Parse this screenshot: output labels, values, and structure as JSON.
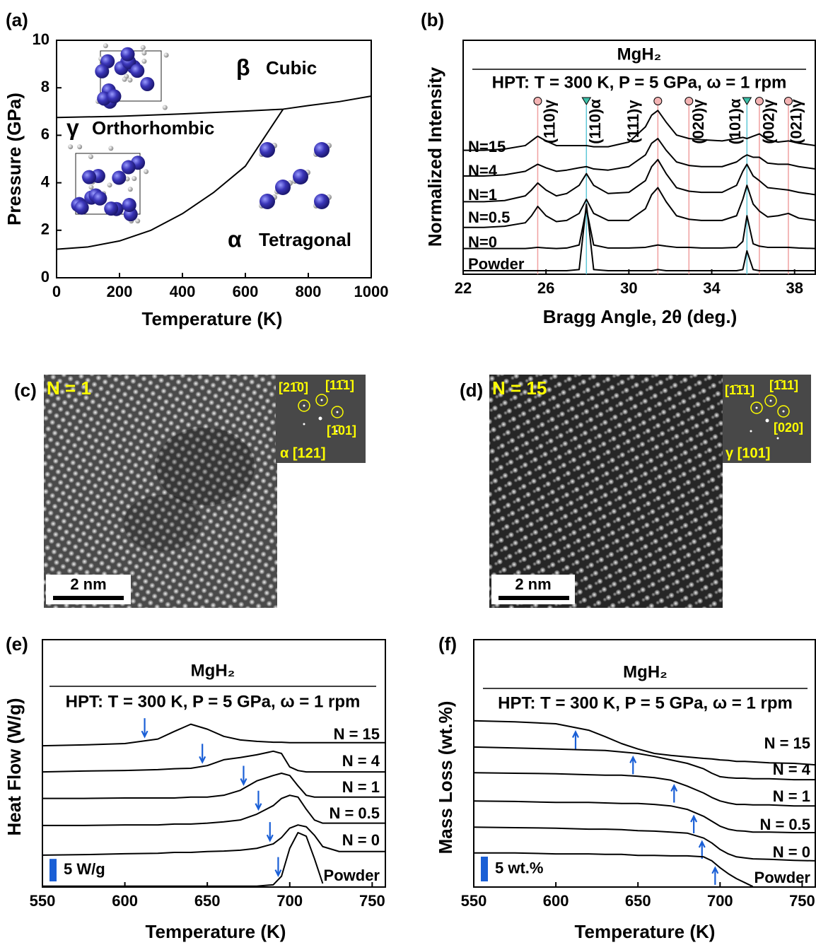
{
  "chart_data": [
    {
      "panel": "(a)",
      "type": "line",
      "xlabel": "Temperature (K)",
      "ylabel": "Pressure (GPa)",
      "xlim": [
        0,
        1000
      ],
      "ylim": [
        0,
        10
      ],
      "xticks": [
        0,
        200,
        400,
        600,
        800,
        1000
      ],
      "yticks": [
        0,
        2,
        4,
        6,
        8,
        10
      ],
      "series": [
        {
          "x": [
            0,
            200,
            400,
            600,
            720,
            800,
            900,
            1000
          ],
          "values": [
            6.75,
            6.8,
            6.9,
            7.02,
            7.1,
            7.25,
            7.42,
            7.65
          ],
          "color": "#000000"
        },
        {
          "x": [
            0,
            100,
            200,
            300,
            400,
            500,
            600,
            720
          ],
          "values": [
            1.2,
            1.3,
            1.55,
            2.0,
            2.7,
            3.6,
            4.7,
            7.1
          ],
          "color": "#000000"
        }
      ],
      "annotations": [
        {
          "symbol": "β",
          "text": "Cubic",
          "color": "#2e9a2e"
        },
        {
          "symbol": "γ",
          "text": "Orthorhombic",
          "color": "#dd1a1a"
        },
        {
          "symbol": "α",
          "text": "Tetragonal",
          "color": "#1f2fd0"
        }
      ]
    },
    {
      "panel": "(b)",
      "type": "line",
      "title": "MgH₂",
      "subtitle": "HPT: T = 300 K, P = 5 GPa, ω = 1 rpm",
      "xlabel": "Bragg Angle, 2θ (deg.)",
      "ylabel": "Normalized Intensity",
      "xlim": [
        22,
        39
      ],
      "ylim": [
        0,
        10
      ],
      "xticks": [
        22,
        26,
        30,
        34,
        38
      ],
      "x": [
        22,
        23,
        24,
        25,
        25.3,
        25.6,
        26,
        26.5,
        27,
        27.6,
        27.95,
        28.3,
        29,
        30,
        30.8,
        31.1,
        31.4,
        31.8,
        32.3,
        32.9,
        33.5,
        34.5,
        35.2,
        35.5,
        35.7,
        36,
        36.3,
        36.7,
        37.2,
        37.7,
        38.2,
        39
      ],
      "series": [
        {
          "name": "N=15",
          "color": "#000000",
          "values": [
            5.3,
            5.3,
            5.35,
            5.5,
            5.7,
            5.9,
            5.7,
            5.5,
            5.5,
            5.5,
            5.5,
            5.45,
            5.45,
            5.65,
            6.3,
            6.8,
            7.0,
            6.5,
            5.95,
            5.8,
            5.75,
            5.7,
            5.8,
            5.85,
            5.8,
            5.9,
            6.0,
            5.75,
            5.65,
            5.7,
            5.6,
            5.5
          ]
        },
        {
          "name": "N=4",
          "color": "#000000",
          "values": [
            4.2,
            4.2,
            4.25,
            4.4,
            4.55,
            4.7,
            4.55,
            4.4,
            4.45,
            4.55,
            4.6,
            4.5,
            4.45,
            4.6,
            5.1,
            5.6,
            5.8,
            5.3,
            4.8,
            4.65,
            4.6,
            4.6,
            4.8,
            5.0,
            5.1,
            5.0,
            5.0,
            4.75,
            4.7,
            4.7,
            4.6,
            4.5
          ]
        },
        {
          "name": "N=1",
          "color": "#000000",
          "values": [
            3.1,
            3.1,
            3.15,
            3.35,
            3.6,
            3.9,
            3.6,
            3.35,
            3.45,
            3.8,
            4.3,
            3.8,
            3.45,
            3.5,
            4.0,
            4.6,
            4.9,
            4.3,
            3.7,
            3.55,
            3.5,
            3.5,
            3.8,
            4.4,
            4.7,
            4.2,
            4.0,
            3.7,
            3.65,
            3.6,
            3.5,
            3.4
          ]
        },
        {
          "name": "N=0.5",
          "color": "#000000",
          "values": [
            2.0,
            2.0,
            2.05,
            2.2,
            2.5,
            2.9,
            2.5,
            2.25,
            2.3,
            2.6,
            3.2,
            2.6,
            2.3,
            2.3,
            2.8,
            3.4,
            3.7,
            3.1,
            2.5,
            2.35,
            2.3,
            2.3,
            2.5,
            3.2,
            3.8,
            3.0,
            2.7,
            2.45,
            2.5,
            2.6,
            2.4,
            2.3
          ]
        },
        {
          "name": "N=0",
          "color": "#000000",
          "values": [
            1.1,
            1.1,
            1.1,
            1.1,
            1.12,
            1.15,
            1.12,
            1.1,
            1.12,
            1.25,
            2.8,
            1.25,
            1.12,
            1.12,
            1.15,
            1.2,
            1.25,
            1.2,
            1.15,
            1.15,
            1.12,
            1.12,
            1.15,
            1.4,
            2.5,
            1.3,
            1.2,
            1.15,
            1.15,
            1.15,
            1.12,
            1.1
          ]
        },
        {
          "name": "Powder",
          "color": "#000000",
          "values": [
            0.15,
            0.15,
            0.15,
            0.15,
            0.15,
            0.15,
            0.15,
            0.15,
            0.15,
            0.2,
            3.0,
            0.2,
            0.15,
            0.15,
            0.15,
            0.15,
            0.2,
            0.15,
            0.15,
            0.15,
            0.15,
            0.15,
            0.15,
            0.2,
            1.0,
            0.2,
            0.15,
            0.15,
            0.15,
            0.15,
            0.15,
            0.15
          ]
        }
      ],
      "peaks": [
        {
          "label": "(110)γ",
          "x": 25.6,
          "marker": "circle",
          "color": "#cc1111"
        },
        {
          "label": "(110)α",
          "x": 27.95,
          "marker": "triangle",
          "color": "#1a55cc"
        },
        {
          "label": "(111)γ",
          "x": 31.4,
          "marker": "circle",
          "color": "#cc1111"
        },
        {
          "label": "(020)γ",
          "x": 32.9,
          "marker": "circle",
          "color": "#cc1111"
        },
        {
          "label": "(101)α",
          "x": 35.7,
          "marker": "triangle",
          "color": "#1a55cc"
        },
        {
          "label": "(002)γ",
          "x": 36.3,
          "marker": "circle",
          "color": "#cc1111"
        },
        {
          "label": "(021)γ",
          "x": 37.7,
          "marker": "circle",
          "color": "#cc1111"
        }
      ]
    },
    {
      "panel": "(e)",
      "type": "line",
      "title": "MgH₂",
      "subtitle": "HPT: T = 300 K, P = 5 GPa, ω = 1 rpm",
      "xlabel": "Temperature (K)",
      "ylabel": "Heat Flow (W/g)",
      "xlim": [
        550,
        758
      ],
      "ylim": [
        0,
        55
      ],
      "xticks": [
        550,
        600,
        650,
        700,
        750
      ],
      "x": [
        550,
        575,
        600,
        620,
        630,
        640,
        650,
        660,
        670,
        680,
        690,
        695,
        700,
        705,
        710,
        715,
        720,
        730,
        745,
        758
      ],
      "series": [
        {
          "name": "N = 15",
          "color": "#000000",
          "onset": 612,
          "values": [
            31.4,
            31.6,
            31.9,
            32.9,
            34.6,
            36.2,
            35.1,
            33.5,
            32.7,
            32.4,
            32.2,
            32.2,
            32.1,
            32.1,
            32.1,
            32.1,
            32.1,
            32.1,
            32.1,
            32.1
          ]
        },
        {
          "name": "N = 4",
          "color": "#000000",
          "onset": 647,
          "values": [
            25.6,
            25.8,
            25.9,
            26.1,
            26.3,
            26.4,
            27.0,
            28.3,
            28.8,
            29.4,
            30.2,
            29.7,
            26.7,
            25.9,
            25.6,
            25.6,
            25.6,
            25.6,
            25.6,
            25.6
          ]
        },
        {
          "name": "N = 1",
          "color": "#000000",
          "onset": 672,
          "values": [
            19.7,
            19.7,
            19.8,
            19.8,
            19.8,
            20.0,
            20.0,
            20.4,
            21.5,
            23.6,
            24.8,
            25.3,
            24.8,
            22.5,
            20.4,
            20.0,
            20.0,
            20.0,
            20.0,
            20.0
          ]
        },
        {
          "name": "N = 0.5",
          "color": "#000000",
          "onset": 681,
          "values": [
            13.7,
            13.7,
            13.8,
            13.8,
            14.0,
            14.0,
            14.2,
            14.5,
            14.9,
            16.2,
            18.1,
            19.7,
            20.4,
            20.0,
            17.3,
            14.9,
            14.2,
            14.2,
            14.2,
            14.2
          ]
        },
        {
          "name": "N = 0",
          "color": "#000000",
          "onset": 688,
          "values": [
            7.1,
            7.2,
            7.4,
            7.5,
            7.7,
            7.7,
            7.9,
            8.0,
            8.2,
            8.6,
            9.6,
            11.0,
            13.1,
            13.8,
            13.4,
            11.5,
            9.0,
            7.9,
            7.9,
            7.9
          ]
        },
        {
          "name": "Powder",
          "color": "#000000",
          "onset": 693,
          "values": [
            0.2,
            0.2,
            0.2,
            0.2,
            0.2,
            0.2,
            0.2,
            0.2,
            0.2,
            0.2,
            0.5,
            2.4,
            8.6,
            12.1,
            11.3,
            6.3,
            0.8,
            null,
            null,
            null
          ]
        }
      ],
      "arrow_color": "#1a5fd6",
      "arrow_direction": "down",
      "scale_bar": {
        "value": 5,
        "label": "5 W/g",
        "color": "#1a5fd6"
      }
    },
    {
      "panel": "(f)",
      "type": "line",
      "title": "MgH₂",
      "subtitle": "HPT: T = 300 K, P = 5 GPa, ω = 1 rpm",
      "xlabel": "Temperature (K)",
      "ylabel": "Mass Loss (wt.%)",
      "xlim": [
        550,
        758
      ],
      "ylim": [
        0,
        50
      ],
      "xticks": [
        550,
        600,
        650,
        700,
        750
      ],
      "x": [
        550,
        575,
        600,
        620,
        630,
        640,
        650,
        660,
        670,
        680,
        690,
        695,
        700,
        705,
        710,
        715,
        720,
        730,
        745,
        758
      ],
      "series": [
        {
          "name": "N = 15",
          "color": "#000000",
          "onset": 612,
          "values": [
            33.6,
            33.4,
            33.0,
            31.7,
            30.4,
            29.0,
            27.9,
            27.0,
            26.6,
            26.3,
            26.0,
            25.9,
            25.7,
            25.6,
            25.4,
            25.4,
            25.3,
            25.1,
            25.0,
            24.7
          ]
        },
        {
          "name": "N = 4",
          "color": "#000000",
          "onset": 647,
          "values": [
            28.3,
            28.1,
            27.9,
            27.7,
            27.6,
            27.3,
            27.0,
            26.4,
            25.7,
            25.0,
            23.9,
            23.0,
            22.3,
            22.1,
            22.0,
            22.0,
            21.9,
            21.9,
            21.7,
            21.7
          ]
        },
        {
          "name": "N = 1",
          "color": "#000000",
          "onset": 672,
          "values": [
            23.1,
            23.0,
            22.9,
            22.7,
            22.6,
            22.6,
            22.4,
            22.1,
            21.6,
            20.4,
            19.0,
            18.1,
            17.4,
            17.0,
            16.7,
            16.7,
            16.6,
            16.6,
            16.4,
            16.4
          ]
        },
        {
          "name": "N = 0.5",
          "color": "#000000",
          "onset": 684,
          "values": [
            17.4,
            17.3,
            17.1,
            17.1,
            17.0,
            16.9,
            16.9,
            16.7,
            16.4,
            15.7,
            14.3,
            13.3,
            12.3,
            11.7,
            11.4,
            11.3,
            11.1,
            11.1,
            11.0,
            11.0
          ]
        },
        {
          "name": "N = 0",
          "color": "#000000",
          "onset": 689,
          "values": [
            12.1,
            12.0,
            11.9,
            11.7,
            11.7,
            11.6,
            11.4,
            11.3,
            11.1,
            10.9,
            9.9,
            8.9,
            7.6,
            6.7,
            6.1,
            5.9,
            5.7,
            5.6,
            5.4,
            5.3
          ]
        },
        {
          "name": "Powder",
          "color": "#000000",
          "onset": 697,
          "values": [
            6.9,
            6.9,
            6.7,
            6.7,
            6.6,
            6.6,
            6.4,
            6.4,
            6.3,
            6.3,
            6.1,
            5.3,
            3.9,
            2.7,
            1.7,
            0.9,
            0.1,
            null,
            null,
            null
          ]
        }
      ],
      "arrow_color": "#1a5fd6",
      "arrow_direction": "up",
      "scale_bar": {
        "value": 5,
        "label": "5 wt.%",
        "color": "#1a5fd6"
      }
    }
  ],
  "micrographs": [
    {
      "panel": "(c)",
      "title": "N = 1",
      "inset_labels": [
        "[21̄0]",
        "[11̄1]",
        "[1̄01]"
      ],
      "zone": "α [121]",
      "scale_bar": "2 nm"
    },
    {
      "panel": "(d)",
      "title": "N = 15",
      "inset_labels": [
        "[1̄1̄1]",
        "[1̄11]",
        "[020]"
      ],
      "zone": "γ [101]",
      "scale_bar": "2 nm"
    }
  ]
}
